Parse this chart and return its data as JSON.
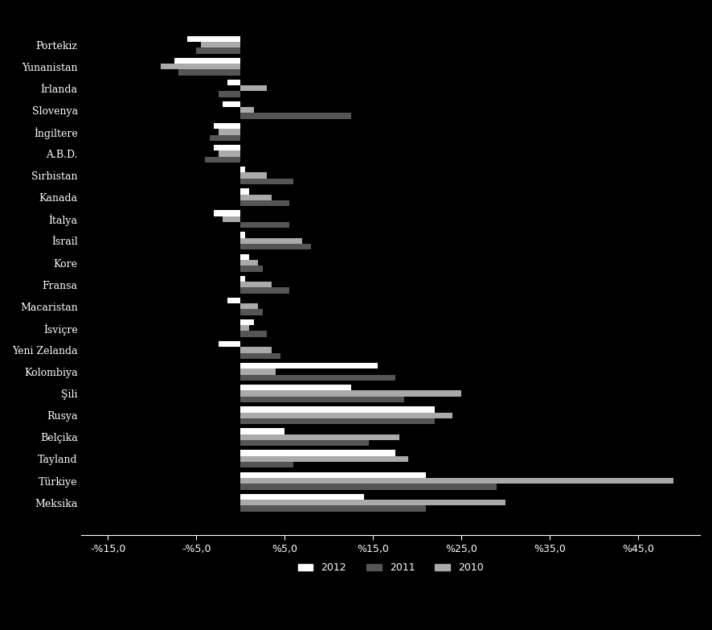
{
  "categories": [
    "Portekiz",
    "Yunanistan",
    "İrlanda",
    "Slovenya",
    "İngiltere",
    "A.B.D.",
    "Sırbistan",
    "Kanada",
    "İtalya",
    "İsrail",
    "Kore",
    "Fransa",
    "Macaristan",
    "İsviçre",
    "Yeni Zelanda",
    "Kolombiya",
    "Şili",
    "Rusya",
    "Belçika",
    "Tayland",
    "Türkiye",
    "Meksika"
  ],
  "series_2012": [
    -6.0,
    -7.5,
    -1.5,
    -2.0,
    -3.0,
    -3.0,
    0.5,
    1.0,
    -3.0,
    0.5,
    1.0,
    0.5,
    -1.5,
    1.5,
    -2.5,
    15.5,
    12.5,
    22.0,
    5.0,
    17.5,
    21.0,
    14.0
  ],
  "series_2011": [
    -5.0,
    -7.0,
    -2.5,
    12.5,
    -3.5,
    -4.0,
    6.0,
    5.5,
    5.5,
    8.0,
    2.5,
    5.5,
    2.5,
    3.0,
    4.5,
    17.5,
    18.5,
    22.0,
    14.5,
    6.0,
    29.0,
    21.0
  ],
  "series_2010": [
    -4.5,
    -9.0,
    3.0,
    1.5,
    -2.5,
    -2.5,
    3.0,
    3.5,
    -2.0,
    7.0,
    2.0,
    3.5,
    2.0,
    1.0,
    3.5,
    4.0,
    25.0,
    24.0,
    18.0,
    19.0,
    49.0,
    30.0
  ],
  "color_2012": "#ffffff",
  "color_2011": "#555555",
  "color_2010": "#aaaaaa",
  "background_color": "#000000",
  "text_color": "#ffffff",
  "bar_height": 0.27,
  "xlim": [
    -18,
    52
  ],
  "xtick_vals": [
    -15,
    -5,
    5,
    15,
    25,
    35,
    45
  ],
  "xtick_labels": [
    "-%15,0",
    "-%5,0",
    "%5,0",
    "%15,0",
    "%25,0",
    "%35,0",
    "%45,0"
  ]
}
